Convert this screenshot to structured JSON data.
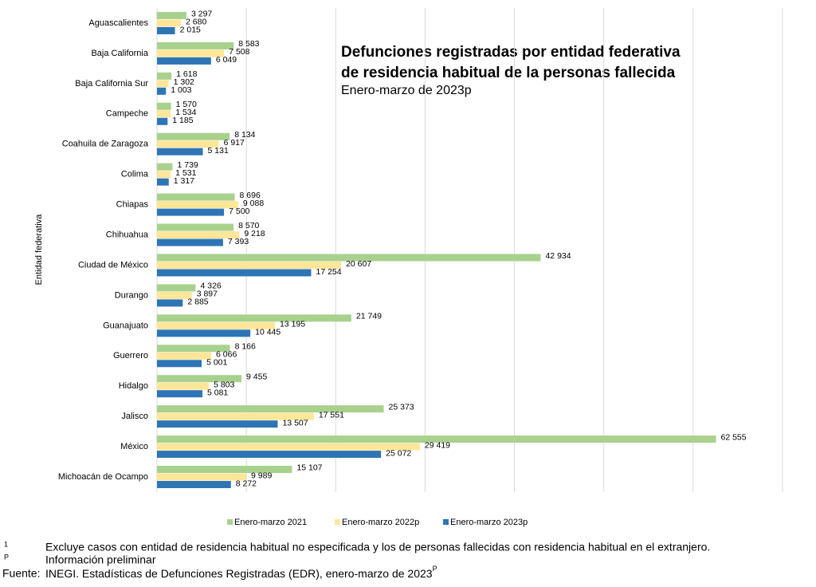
{
  "chart_data": {
    "type": "hbar",
    "title": [
      "Defunciones registradas por entidad federativa",
      "de residencia habitual de la personas fallecida"
    ],
    "subtitle": "Enero-marzo de 2023p",
    "y_label": "Entidad federativa",
    "categories": [
      "Aguascalientes",
      "Baja California",
      "Baja California Sur",
      "Campeche",
      "Coahuila de Zaragoza",
      "Colima",
      "Chiapas",
      "Chihuahua",
      "Ciudad de México",
      "Durango",
      "Guanajuato",
      "Guerrero",
      "Hidalgo",
      "Jalisco",
      "México",
      "Michoacán de Ocampo"
    ],
    "series": [
      {
        "name": "Enero-marzo 2021",
        "color": "#a9d18e",
        "values": [
          3297,
          8583,
          1618,
          1570,
          8134,
          1739,
          8696,
          8570,
          42934,
          4326,
          21749,
          8166,
          9455,
          25373,
          62555,
          15107
        ],
        "value_labels": [
          "3 297",
          "8 583",
          "1 618",
          "1 570",
          "8 134",
          "1 739",
          "8 696",
          "8 570",
          "42 934",
          "4 326",
          "21 749",
          "8 166",
          "9 455",
          "25 373",
          "62 555",
          "15 107"
        ]
      },
      {
        "name": "Enero-marzo 2022p",
        "color": "#ffe699",
        "values": [
          2680,
          7508,
          1302,
          1534,
          6917,
          1531,
          9088,
          9218,
          20607,
          3897,
          13195,
          6066,
          5803,
          17551,
          29419,
          9989
        ],
        "value_labels": [
          "2 680",
          "7 508",
          "1 302",
          "1 534",
          "6 917",
          "1 531",
          "9 088",
          "9 218",
          "20 607",
          "3 897",
          "13 195",
          "6 066",
          "5 803",
          "17 551",
          "29 419",
          "9 989"
        ]
      },
      {
        "name": "Enero-marzo 2023p",
        "color": "#2e75b6",
        "values": [
          2015,
          6049,
          1003,
          1185,
          5131,
          1317,
          7500,
          7393,
          17254,
          2885,
          10445,
          5001,
          5081,
          13507,
          25072,
          8272
        ],
        "value_labels": [
          "2 015",
          "6 049",
          "1 003",
          "1 185",
          "5 131",
          "1 317",
          "7 500",
          "7 393",
          "17 254",
          "2 885",
          "10 445",
          "5 001",
          "5 081",
          "13 507",
          "25 072",
          "8 272"
        ]
      }
    ],
    "xlim": [
      0,
      70000
    ],
    "xticks": [
      0,
      10000,
      20000,
      30000,
      40000,
      50000,
      60000,
      70000
    ],
    "grid": true,
    "legend": "bottom"
  },
  "notes": [
    {
      "mark": "1",
      "text": "Excluye casos con entidad de residencia habitual no especificada y los de personas fallecidas con residencia habitual en el extranjero."
    },
    {
      "mark": "P",
      "text": "Información preliminar"
    }
  ],
  "source": {
    "label": "Fuente:",
    "text": "INEGI. Estadísticas de Defunciones Registradas (EDR), enero-marzo de 2023",
    "sup": "P"
  }
}
